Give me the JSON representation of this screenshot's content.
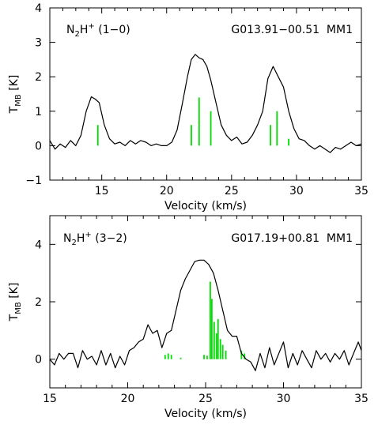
{
  "chart_data": [
    {
      "type": "line",
      "title": "N2H+ (1-0)",
      "label": {
        "base": "N",
        "sub": "2",
        "mid": "H",
        "sup": "+",
        "tail": " (1−0)"
      },
      "source": "G013.91−00.51  MM1",
      "xlabel": "Velocity (km/s)",
      "ylabel": {
        "base": "T",
        "sub": "MB",
        "unit": " [K]"
      },
      "xlim": [
        11,
        35
      ],
      "ylim": [
        -1,
        4
      ],
      "xticks": [
        15,
        20,
        25,
        30,
        35
      ],
      "yticks": [
        -1,
        0,
        1,
        2,
        3,
        4
      ],
      "ytick_labels": [
        "−1",
        "0",
        "1",
        "2",
        "3",
        "4"
      ],
      "grid": false,
      "line_color": "#000000",
      "stick_color": "#00dd00",
      "series": [
        {
          "x": [
            11.0,
            11.4,
            11.8,
            12.2,
            12.6,
            13.0,
            13.4,
            13.8,
            14.2,
            14.5,
            14.8,
            15.2,
            15.6,
            16.0,
            16.4,
            16.8,
            17.2,
            17.6,
            18.0,
            18.4,
            18.8,
            19.2,
            19.6,
            20.0,
            20.4,
            20.8,
            21.2,
            21.6,
            21.9,
            22.2,
            22.5,
            22.8,
            23.1,
            23.4,
            23.8,
            24.2,
            24.6,
            25.0,
            25.4,
            25.8,
            26.2,
            26.6,
            27.0,
            27.4,
            27.8,
            28.2,
            28.6,
            29.0,
            29.4,
            29.8,
            30.2,
            30.6,
            31.0,
            31.4,
            31.8,
            32.2,
            32.6,
            33.0,
            33.4,
            33.8,
            34.2,
            34.6,
            35.0
          ],
          "y": [
            0.15,
            -0.1,
            0.05,
            -0.05,
            0.15,
            0.0,
            0.3,
            1.0,
            1.42,
            1.35,
            1.25,
            0.6,
            0.2,
            0.05,
            0.1,
            0.0,
            0.15,
            0.05,
            0.15,
            0.1,
            0.0,
            0.05,
            0.0,
            0.0,
            0.1,
            0.45,
            1.2,
            2.0,
            2.5,
            2.65,
            2.55,
            2.5,
            2.3,
            1.9,
            1.25,
            0.6,
            0.3,
            0.15,
            0.25,
            0.05,
            0.1,
            0.3,
            0.6,
            1.0,
            1.95,
            2.3,
            2.0,
            1.7,
            1.0,
            0.5,
            0.2,
            0.15,
            0.0,
            -0.1,
            0.0,
            -0.1,
            -0.2,
            -0.05,
            -0.1,
            0.0,
            0.1,
            0.0,
            0.05
          ]
        }
      ],
      "sticks": [
        {
          "x": 14.7,
          "y": 0.6
        },
        {
          "x": 21.9,
          "y": 0.6
        },
        {
          "x": 22.5,
          "y": 1.4
        },
        {
          "x": 23.4,
          "y": 1.0
        },
        {
          "x": 28.0,
          "y": 0.6
        },
        {
          "x": 28.5,
          "y": 1.0
        },
        {
          "x": 29.4,
          "y": 0.2
        }
      ]
    },
    {
      "type": "line",
      "title": "N2H+ (3-2)",
      "label": {
        "base": "N",
        "sub": "2",
        "mid": "H",
        "sup": "+",
        "tail": " (3−2)"
      },
      "source": "G017.19+00.81  MM1",
      "xlabel": "Velocity (km/s)",
      "ylabel": {
        "base": "T",
        "sub": "MB",
        "unit": " [K]"
      },
      "xlim": [
        15,
        35
      ],
      "ylim": [
        -1,
        5
      ],
      "xticks": [
        15,
        20,
        25,
        30,
        35
      ],
      "yticks": [
        0,
        2,
        4
      ],
      "ytick_labels": [
        "0",
        "2",
        "4"
      ],
      "grid": false,
      "line_color": "#000000",
      "stick_color": "#00dd00",
      "series": [
        {
          "x": [
            15.0,
            15.3,
            15.6,
            15.9,
            16.2,
            16.5,
            16.8,
            17.1,
            17.4,
            17.7,
            18.0,
            18.3,
            18.6,
            18.9,
            19.2,
            19.5,
            19.8,
            20.1,
            20.4,
            20.7,
            21.0,
            21.3,
            21.6,
            21.9,
            22.2,
            22.5,
            22.8,
            23.1,
            23.4,
            23.7,
            24.0,
            24.3,
            24.6,
            24.9,
            25.2,
            25.5,
            25.8,
            26.1,
            26.4,
            26.7,
            27.0,
            27.3,
            27.6,
            27.9,
            28.2,
            28.5,
            28.8,
            29.1,
            29.4,
            29.7,
            30.0,
            30.3,
            30.6,
            30.9,
            31.2,
            31.5,
            31.8,
            32.1,
            32.4,
            32.7,
            33.0,
            33.3,
            33.6,
            33.9,
            34.2,
            34.5,
            34.8,
            35.0
          ],
          "y": [
            0.0,
            -0.2,
            0.2,
            0.0,
            0.2,
            0.2,
            -0.3,
            0.3,
            0.0,
            0.1,
            -0.2,
            0.3,
            -0.2,
            0.2,
            -0.3,
            0.1,
            -0.2,
            0.3,
            0.4,
            0.6,
            0.7,
            1.2,
            0.9,
            1.0,
            0.4,
            0.9,
            1.0,
            1.7,
            2.4,
            2.8,
            3.1,
            3.4,
            3.45,
            3.45,
            3.3,
            3.0,
            2.4,
            1.7,
            1.0,
            0.8,
            0.8,
            0.2,
            0.0,
            -0.1,
            -0.4,
            0.2,
            -0.3,
            0.4,
            -0.2,
            0.2,
            0.6,
            -0.3,
            0.2,
            -0.2,
            0.3,
            0.0,
            -0.3,
            0.3,
            0.0,
            0.2,
            -0.1,
            0.2,
            0.0,
            0.3,
            -0.2,
            0.2,
            0.6,
            0.3
          ]
        }
      ],
      "sticks": [
        {
          "x": 22.4,
          "y": 0.15
        },
        {
          "x": 22.6,
          "y": 0.2
        },
        {
          "x": 22.8,
          "y": 0.15
        },
        {
          "x": 23.4,
          "y": 0.05
        },
        {
          "x": 24.9,
          "y": 0.15
        },
        {
          "x": 25.1,
          "y": 0.12
        },
        {
          "x": 25.3,
          "y": 2.7
        },
        {
          "x": 25.4,
          "y": 2.1
        },
        {
          "x": 25.55,
          "y": 1.3
        },
        {
          "x": 25.7,
          "y": 0.9
        },
        {
          "x": 25.8,
          "y": 1.4
        },
        {
          "x": 25.95,
          "y": 0.7
        },
        {
          "x": 26.1,
          "y": 0.5
        },
        {
          "x": 26.3,
          "y": 0.3
        },
        {
          "x": 27.3,
          "y": 0.3
        },
        {
          "x": 27.5,
          "y": 0.2
        }
      ]
    }
  ]
}
